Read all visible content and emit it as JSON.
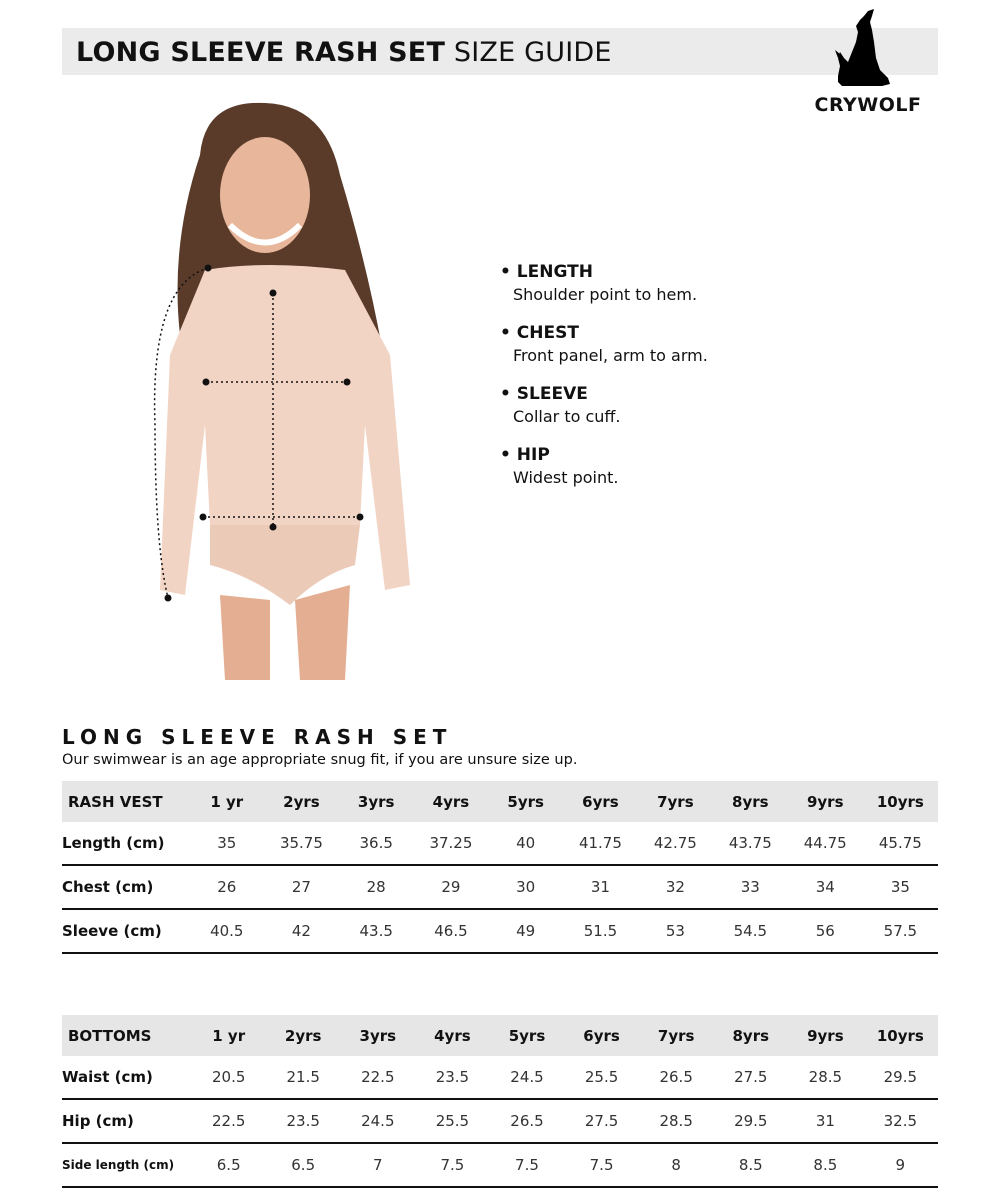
{
  "header": {
    "title_bold": "LONG SLEEVE RASH SET",
    "title_light": "SIZE GUIDE"
  },
  "logo": {
    "text": "CRYWOLF",
    "icon": "howling-wolf-icon"
  },
  "measurements": [
    {
      "title": "• LENGTH",
      "desc": "Shoulder point to hem."
    },
    {
      "title": "• CHEST",
      "desc": "Front panel, arm to arm."
    },
    {
      "title": "• SLEEVE",
      "desc": "Collar to cuff."
    },
    {
      "title": "• HIP",
      "desc": "Widest point."
    }
  ],
  "section": {
    "title": "LONG SLEEVE RASH SET",
    "subtitle": "Our swimwear is an age appropriate snug fit, if you are unsure size up."
  },
  "tables": [
    {
      "header": [
        "RASH VEST",
        "1 yr",
        "2yrs",
        "3yrs",
        "4yrs",
        "5yrs",
        "6yrs",
        "7yrs",
        "8yrs",
        "9yrs",
        "10yrs"
      ],
      "rows": [
        [
          "Length (cm)",
          "35",
          "35.75",
          "36.5",
          "37.25",
          "40",
          "41.75",
          "42.75",
          "43.75",
          "44.75",
          "45.75"
        ],
        [
          "Chest (cm)",
          "26",
          "27",
          "28",
          "29",
          "30",
          "31",
          "32",
          "33",
          "34",
          "35"
        ],
        [
          "Sleeve (cm)",
          "40.5",
          "42",
          "43.5",
          "46.5",
          "49",
          "51.5",
          "53",
          "54.5",
          "56",
          "57.5"
        ]
      ]
    },
    {
      "header": [
        "BOTTOMS",
        "1 yr",
        "2yrs",
        "3yrs",
        "4yrs",
        "5yrs",
        "6yrs",
        "7yrs",
        "8yrs",
        "9yrs",
        "10yrs"
      ],
      "rows": [
        [
          "Waist (cm)",
          "20.5",
          "21.5",
          "22.5",
          "23.5",
          "24.5",
          "25.5",
          "26.5",
          "27.5",
          "28.5",
          "29.5"
        ],
        [
          "Hip (cm)",
          "22.5",
          "23.5",
          "24.5",
          "25.5",
          "26.5",
          "27.5",
          "28.5",
          "29.5",
          "31",
          "32.5"
        ],
        [
          "Side length (cm)",
          "6.5",
          "6.5",
          "7",
          "7.5",
          "7.5",
          "7.5",
          "8",
          "8.5",
          "8.5",
          "9"
        ]
      ]
    }
  ]
}
